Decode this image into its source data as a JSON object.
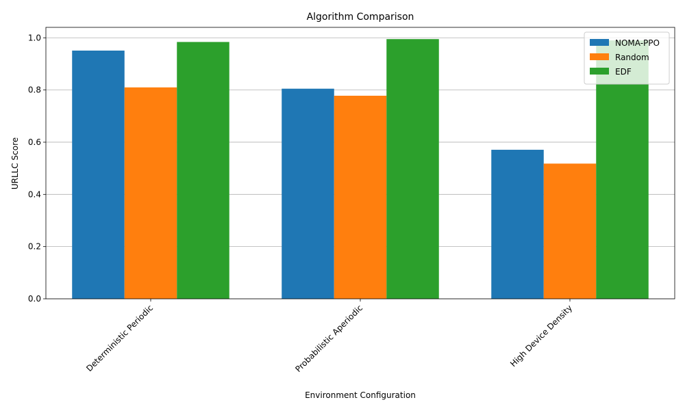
{
  "chart_data": {
    "type": "bar",
    "title": "Algorithm Comparison",
    "xlabel": "Environment Configuration",
    "ylabel": "URLLC Score",
    "categories": [
      "Deterministic Periodic",
      "Probabilistic Aperiodic",
      "High Device Density"
    ],
    "series": [
      {
        "name": "NOMA-PPO",
        "color": "#1f77b4",
        "values": [
          0.951,
          0.805,
          0.571
        ]
      },
      {
        "name": "Random",
        "color": "#ff7f0e",
        "values": [
          0.81,
          0.778,
          0.518
        ]
      },
      {
        "name": "EDF",
        "color": "#2ca02c",
        "values": [
          0.984,
          0.995,
          0.99
        ]
      }
    ],
    "ylim": [
      0,
      1.04
    ],
    "yticks": [
      "0.0",
      "0.2",
      "0.4",
      "0.6",
      "0.8",
      "1.0"
    ],
    "grid": "horizontal",
    "legend": "top-right",
    "xtick_rotation": "45 degrees"
  }
}
